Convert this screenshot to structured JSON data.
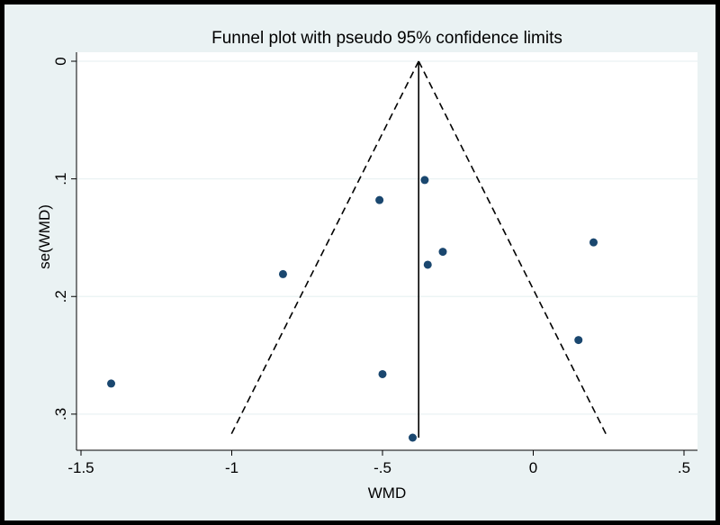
{
  "chart_data": {
    "type": "scatter",
    "title": "Funnel plot with pseudo 95% confidence limits",
    "xlabel": "WMD",
    "ylabel": "se(WMD)",
    "xlim": [
      -1.5,
      0.5
    ],
    "ylim": [
      0,
      0.32
    ],
    "y_reversed": true,
    "grid": "horizontal",
    "xticks": [
      -1.5,
      -1,
      -0.5,
      0,
      0.5
    ],
    "xtick_labels": [
      "-1.5",
      "-1",
      "-.5",
      "0",
      ".5"
    ],
    "yticks": [
      0,
      0.1,
      0.2,
      0.3
    ],
    "ytick_labels": [
      "0",
      ".1",
      ".2",
      ".3"
    ],
    "pooled_estimate": -0.38,
    "confidence_limit_max_se": 0.32,
    "points": [
      {
        "x": -1.4,
        "y": 0.274
      },
      {
        "x": -0.83,
        "y": 0.181
      },
      {
        "x": -0.51,
        "y": 0.118
      },
      {
        "x": -0.5,
        "y": 0.266
      },
      {
        "x": -0.4,
        "y": 0.32
      },
      {
        "x": -0.36,
        "y": 0.101
      },
      {
        "x": -0.35,
        "y": 0.173
      },
      {
        "x": -0.3,
        "y": 0.162
      },
      {
        "x": 0.15,
        "y": 0.237
      },
      {
        "x": 0.2,
        "y": 0.154
      }
    ],
    "colors": {
      "background": "#eaf2f3",
      "plot_area": "#ffffff",
      "marker": "#1a476f",
      "grid": "#eaf2f3"
    }
  }
}
